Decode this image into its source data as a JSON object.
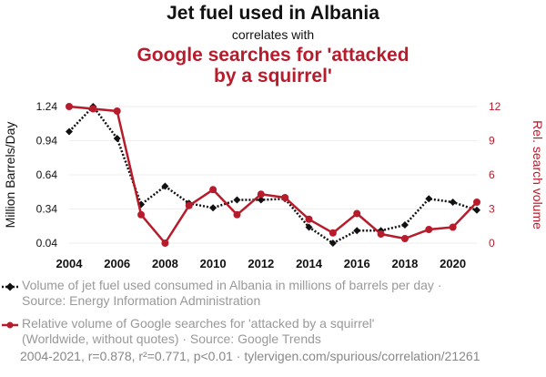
{
  "header": {
    "title": "Jet fuel used in Albania",
    "subtitle": "correlates with",
    "title2_line1": "Google searches for 'attacked",
    "title2_line2": "by a squirrel'"
  },
  "chart_data": {
    "type": "line",
    "x": [
      2004,
      2005,
      2006,
      2007,
      2008,
      2009,
      2010,
      2011,
      2012,
      2013,
      2014,
      2015,
      2016,
      2017,
      2018,
      2019,
      2020,
      2021
    ],
    "x_ticks": [
      "2004",
      "2006",
      "2008",
      "2010",
      "2012",
      "2014",
      "2016",
      "2018",
      "2020"
    ],
    "left_axis": {
      "label": "Million Barrels/Day",
      "ticks": [
        "1.24",
        "0.94",
        "0.64",
        "0.34",
        "0.04"
      ],
      "ylim": [
        0.04,
        1.24
      ]
    },
    "right_axis": {
      "label": "Rel. search volume",
      "ticks": [
        "12",
        "9",
        "6",
        "3",
        "0"
      ],
      "ylim": [
        0,
        12
      ]
    },
    "series": [
      {
        "name": "Jet fuel used in Albania",
        "axis": "left",
        "color": "#111111",
        "style": "dotted",
        "marker": "diamond",
        "values": [
          1.02,
          1.24,
          0.96,
          0.38,
          0.54,
          0.39,
          0.35,
          0.42,
          0.42,
          0.43,
          0.18,
          0.04,
          0.15,
          0.15,
          0.2,
          0.43,
          0.4,
          0.33
        ]
      },
      {
        "name": "Google searches for 'attacked by a squirrel'",
        "axis": "right",
        "color": "#b71c2c",
        "style": "solid",
        "marker": "circle",
        "values": [
          12,
          11.8,
          11.6,
          2.5,
          0,
          3.3,
          4.7,
          2.5,
          4.3,
          4.0,
          2.1,
          0.9,
          2.6,
          0.8,
          0.4,
          1.2,
          1.4,
          3.6
        ]
      }
    ]
  },
  "legend": {
    "item1_line1": "Volume of jet fuel used consumed in Albania in millions of barrels per day ·",
    "item1_line2": "Source: Energy Information Administration",
    "item2_line1": "Relative volume of Google searches for 'attacked by a squirrel'",
    "item2_line2": "(Worldwide, without quotes) · Source: Google Trends"
  },
  "footer": "2004-2021, r=0.878, r²=0.771, p<0.01 · tylervigen.com/spurious/correlation/21261"
}
